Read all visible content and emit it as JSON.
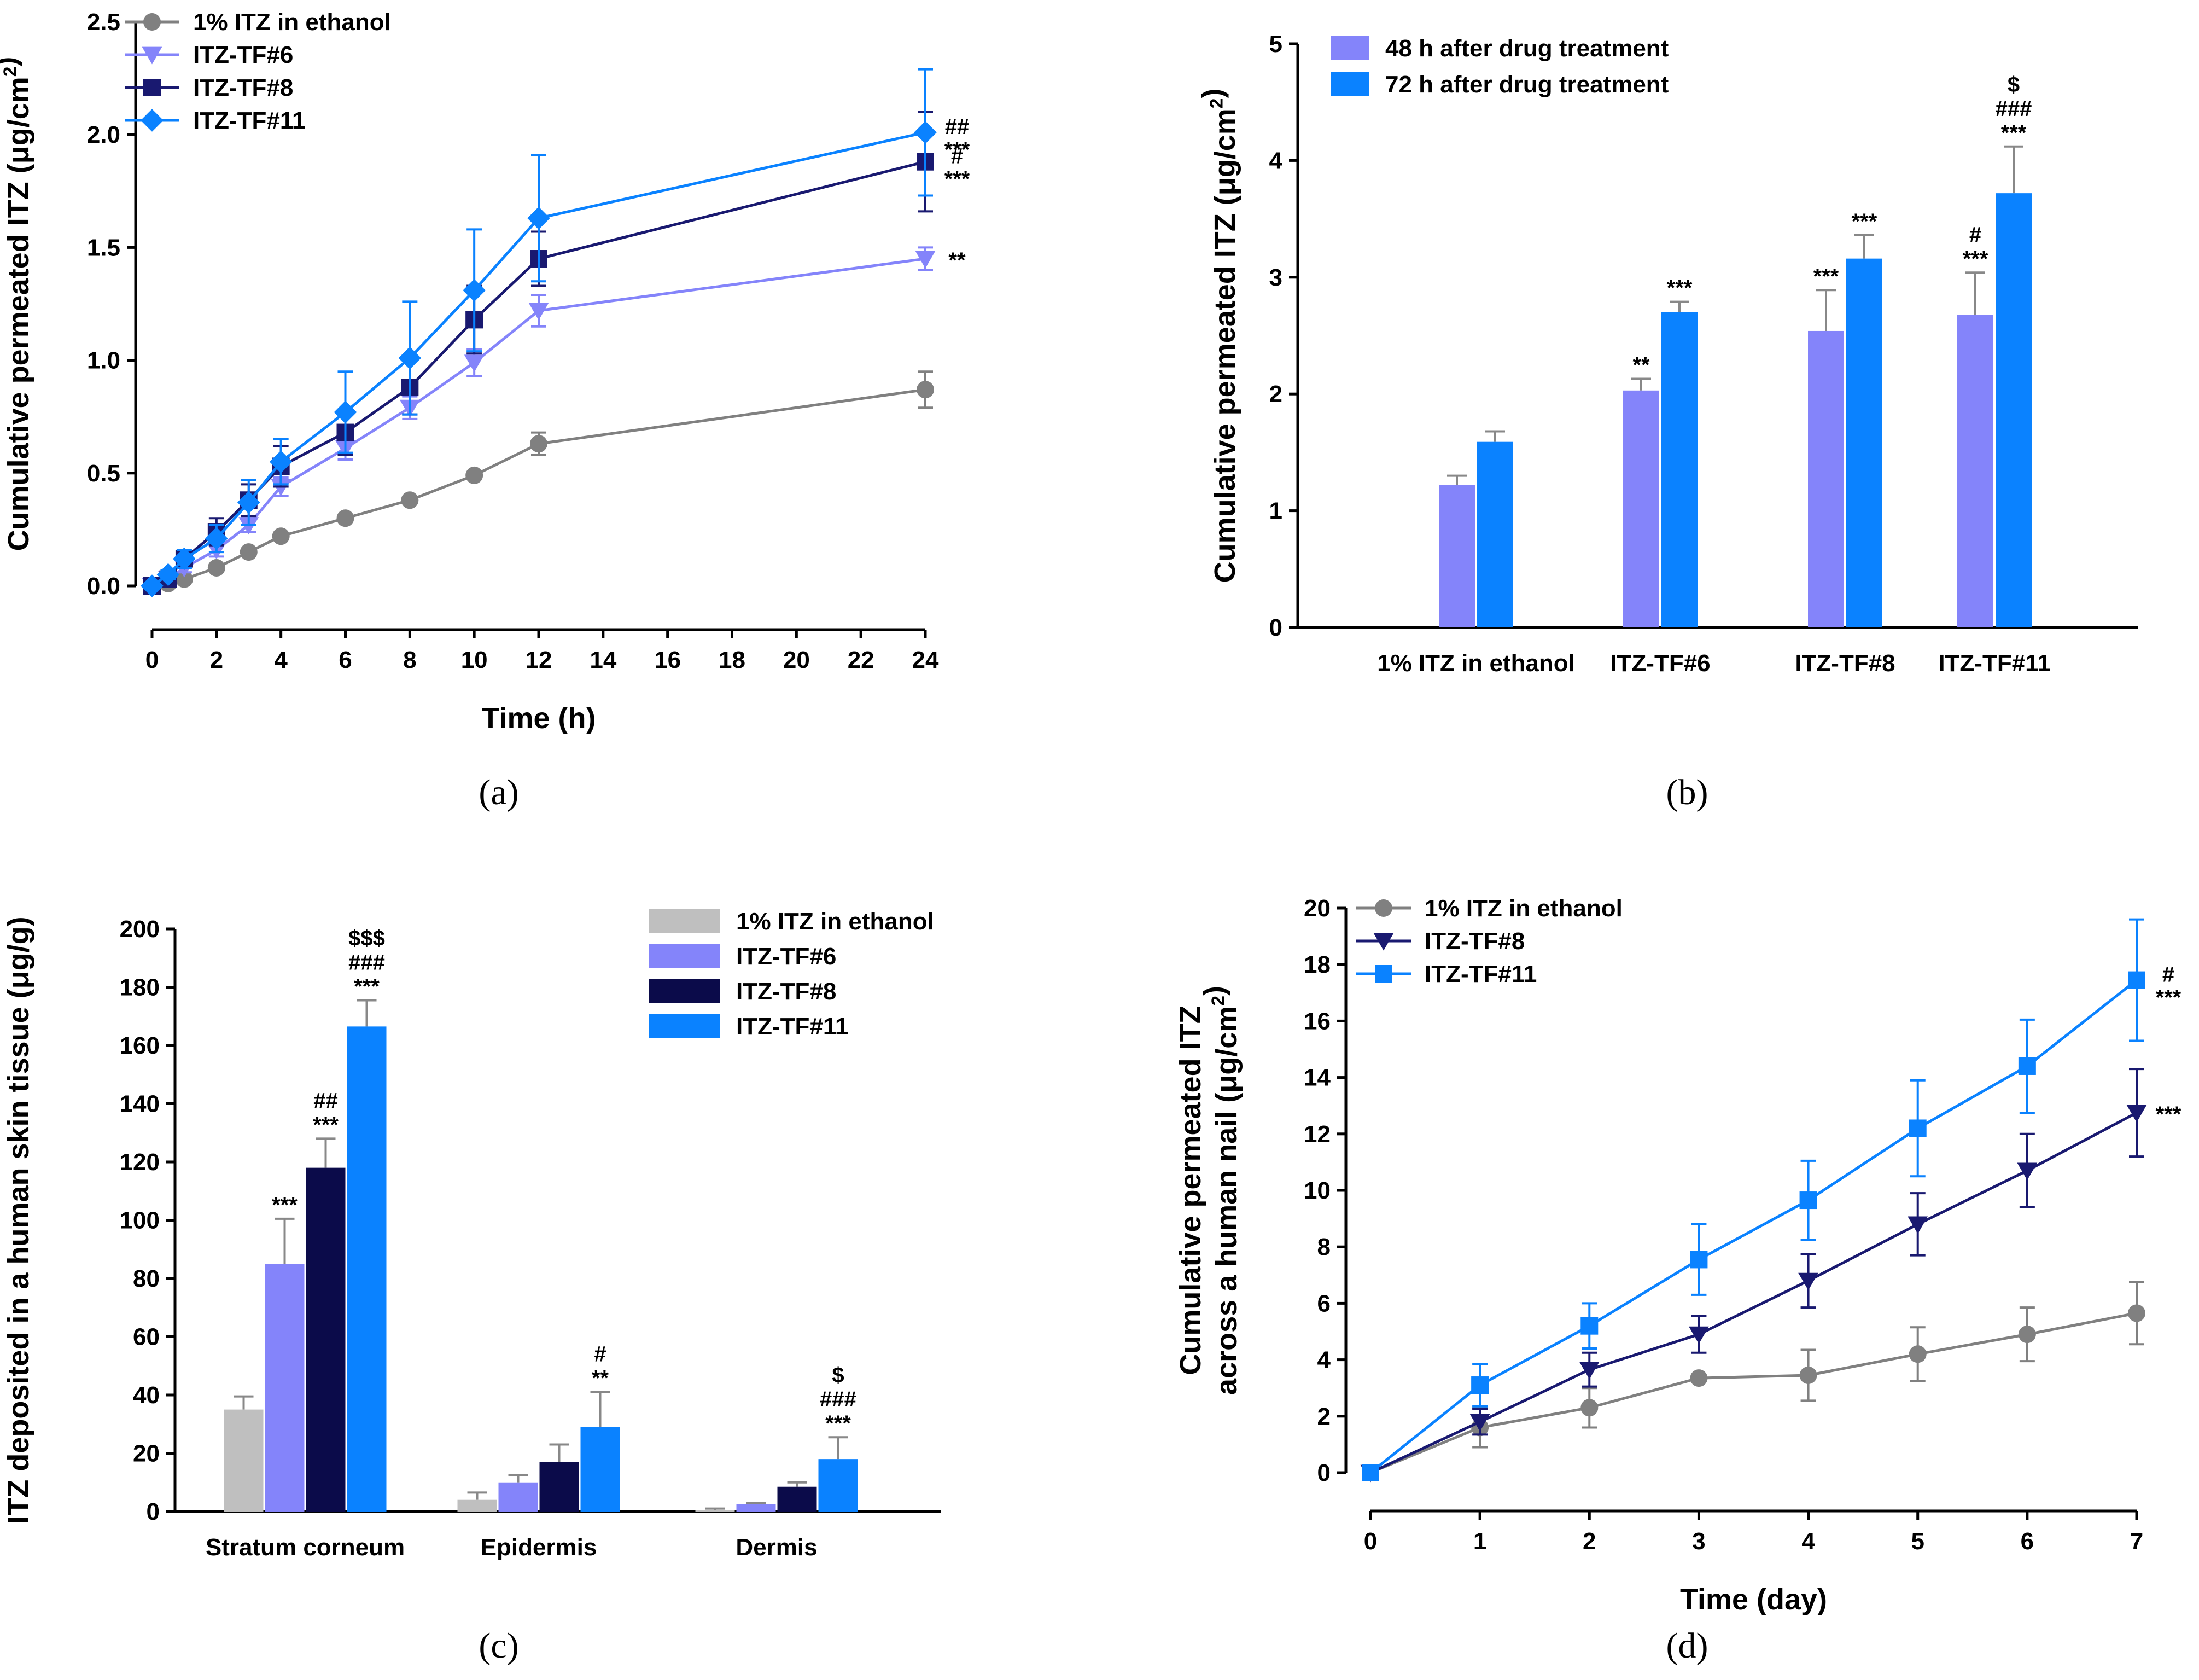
{
  "colors": {
    "ethanol_line": "#808080",
    "ethanol_bar": "#bfbfbf",
    "tf6": "#8484fa",
    "tf8_line": "#191970",
    "tf8_bar": "#0b0b4a",
    "tf11": "#0a82ff",
    "bar48": "#8484fa",
    "bar72": "#0a82ff",
    "axis": "#000000"
  },
  "chart_data": [
    {
      "id": "a",
      "panel_label": "(a)",
      "type": "line",
      "xlabel": "Time (h)",
      "ylabel": "Cumulative permeated ITZ (μg/cm²)",
      "xlim": [
        0,
        24
      ],
      "ylim": [
        0,
        2.5
      ],
      "xticks": [
        "0",
        "2",
        "4",
        "6",
        "8",
        "10",
        "12",
        "14",
        "16",
        "18",
        "20",
        "22",
        "24"
      ],
      "yticks": [
        "0.0",
        "0.5",
        "1.0",
        "1.5",
        "2.0",
        "2.5"
      ],
      "x": [
        0,
        0.5,
        1,
        2,
        3,
        4,
        6,
        8,
        10,
        12,
        24
      ],
      "legend": [
        "1% ITZ in ethanol",
        "ITZ-TF#6",
        "ITZ-TF#8",
        "ITZ-TF#11"
      ],
      "series": [
        {
          "name": "1% ITZ in ethanol",
          "marker": "circle",
          "color_key": "ethanol_line",
          "values": [
            0,
            0.01,
            0.03,
            0.08,
            0.15,
            0.22,
            0.3,
            0.38,
            0.49,
            0.63,
            0.87
          ],
          "errors": [
            0.01,
            0.01,
            0.01,
            0.01,
            0.01,
            0.01,
            0.01,
            0.01,
            0.01,
            0.05,
            0.08
          ]
        },
        {
          "name": "ITZ-TF#6",
          "marker": "triangle-down",
          "color_key": "tf6",
          "values": [
            0,
            0.03,
            0.08,
            0.16,
            0.27,
            0.44,
            0.61,
            0.79,
            0.99,
            1.22,
            1.45
          ],
          "errors": [
            0.01,
            0.01,
            0.02,
            0.03,
            0.03,
            0.04,
            0.05,
            0.05,
            0.06,
            0.07,
            0.05
          ]
        },
        {
          "name": "ITZ-TF#8",
          "marker": "square",
          "color_key": "tf8_line",
          "values": [
            0,
            0.03,
            0.12,
            0.24,
            0.38,
            0.53,
            0.68,
            0.88,
            1.18,
            1.45,
            1.88
          ],
          "errors": [
            0.01,
            0.02,
            0.03,
            0.06,
            0.07,
            0.09,
            0.1,
            0.12,
            0.15,
            0.12,
            0.22
          ]
        },
        {
          "name": "ITZ-TF#11",
          "marker": "diamond",
          "color_key": "tf11",
          "values": [
            0,
            0.05,
            0.12,
            0.21,
            0.37,
            0.55,
            0.77,
            1.01,
            1.31,
            1.63,
            2.01
          ],
          "errors": [
            0.01,
            0.02,
            0.04,
            0.06,
            0.1,
            0.1,
            0.18,
            0.25,
            0.27,
            0.28,
            0.28
          ]
        }
      ],
      "annotations": [
        {
          "series": 3,
          "lines": [
            "##",
            "***"
          ]
        },
        {
          "series": 2,
          "lines": [
            "#",
            "***"
          ]
        },
        {
          "series": 1,
          "lines": [
            "**"
          ]
        }
      ]
    },
    {
      "id": "b",
      "panel_label": "(b)",
      "type": "bar",
      "ylabel": "Cumulative permeated ITZ (μg/cm²)",
      "ylim": [
        0,
        5
      ],
      "yticks": [
        "0",
        "1",
        "2",
        "3",
        "4",
        "5"
      ],
      "categories": [
        "1% ITZ in ethanol",
        "ITZ-TF#6",
        "ITZ-TF#8",
        "ITZ-TF#11"
      ],
      "legend": [
        "48 h after drug treatment",
        "72 h after drug treatment"
      ],
      "series": [
        {
          "name": "48 h after drug treatment",
          "color_key": "bar48",
          "values": [
            1.22,
            2.03,
            2.54,
            2.68
          ],
          "errors": [
            0.08,
            0.1,
            0.35,
            0.36
          ]
        },
        {
          "name": "72 h after drug treatment",
          "color_key": "bar72",
          "values": [
            1.59,
            2.7,
            3.16,
            3.72
          ],
          "errors": [
            0.09,
            0.09,
            0.2,
            0.4
          ]
        }
      ],
      "annotations": [
        {
          "cat": 1,
          "series": 0,
          "lines": [
            "**"
          ]
        },
        {
          "cat": 1,
          "series": 1,
          "lines": [
            "***"
          ]
        },
        {
          "cat": 2,
          "series": 0,
          "lines": [
            "***"
          ]
        },
        {
          "cat": 2,
          "series": 1,
          "lines": [
            "***"
          ]
        },
        {
          "cat": 3,
          "series": 0,
          "lines": [
            "#",
            "***"
          ]
        },
        {
          "cat": 3,
          "series": 1,
          "lines": [
            "$",
            "###",
            "***"
          ]
        }
      ]
    },
    {
      "id": "c",
      "panel_label": "(c)",
      "type": "bar",
      "ylabel": "ITZ deposited in a human skin tissue (μg/g)",
      "ylim": [
        0,
        200
      ],
      "yticks": [
        "0",
        "20",
        "40",
        "60",
        "80",
        "100",
        "120",
        "140",
        "160",
        "180",
        "200"
      ],
      "categories": [
        "Stratum corneum",
        "Epidermis",
        "Dermis"
      ],
      "legend": [
        "1% ITZ in ethanol",
        "ITZ-TF#6",
        "ITZ-TF#8",
        "ITZ-TF#11"
      ],
      "series": [
        {
          "name": "1% ITZ in ethanol",
          "color_key": "ethanol_bar",
          "values": [
            35,
            4,
            0.5
          ],
          "errors": [
            4.5,
            2.5,
            0.5
          ]
        },
        {
          "name": "ITZ-TF#6",
          "color_key": "tf6",
          "values": [
            85,
            10,
            2.5
          ],
          "errors": [
            15.5,
            2.5,
            0.5
          ]
        },
        {
          "name": "ITZ-TF#8",
          "color_key": "tf8_bar",
          "values": [
            118,
            17,
            8.5
          ],
          "errors": [
            10,
            6,
            1.5
          ]
        },
        {
          "name": "ITZ-TF#11",
          "color_key": "tf11",
          "values": [
            166.5,
            29,
            18
          ],
          "errors": [
            9,
            12,
            7.5
          ]
        }
      ],
      "annotations": [
        {
          "cat": 0,
          "series": 1,
          "lines": [
            "***"
          ]
        },
        {
          "cat": 0,
          "series": 2,
          "lines": [
            "##",
            "***"
          ]
        },
        {
          "cat": 0,
          "series": 3,
          "lines": [
            "$$$",
            "###",
            "***"
          ]
        },
        {
          "cat": 1,
          "series": 3,
          "lines": [
            "#",
            "**"
          ]
        },
        {
          "cat": 2,
          "series": 3,
          "lines": [
            "$",
            "###",
            "***"
          ]
        }
      ]
    },
    {
      "id": "d",
      "panel_label": "(d)",
      "type": "line",
      "xlabel": "Time (day)",
      "ylabel_lines": [
        "Cumulative permeated ITZ",
        "across a human nail (μg/cm²)"
      ],
      "xlim": [
        0,
        7
      ],
      "ylim": [
        0,
        20
      ],
      "xticks": [
        "0",
        "1",
        "2",
        "3",
        "4",
        "5",
        "6",
        "7"
      ],
      "yticks": [
        "0",
        "2",
        "4",
        "6",
        "8",
        "10",
        "12",
        "14",
        "16",
        "18",
        "20"
      ],
      "x": [
        0,
        1,
        2,
        3,
        4,
        5,
        6,
        7
      ],
      "legend": [
        "1% ITZ in ethanol",
        "ITZ-TF#8",
        "ITZ-TF#11"
      ],
      "series": [
        {
          "name": "1% ITZ in ethanol",
          "marker": "circle",
          "color_key": "ethanol_line",
          "values": [
            0,
            1.6,
            2.3,
            3.35,
            3.45,
            4.2,
            4.9,
            5.65
          ],
          "errors": [
            0.05,
            0.7,
            0.7,
            0.1,
            0.9,
            0.95,
            0.95,
            1.1
          ]
        },
        {
          "name": "ITZ-TF#8",
          "marker": "triangle-down",
          "color_key": "tf8_line",
          "values": [
            0,
            1.8,
            3.65,
            4.9,
            6.8,
            8.8,
            10.7,
            12.75
          ],
          "errors": [
            0.05,
            0.45,
            0.6,
            0.65,
            0.95,
            1.1,
            1.3,
            1.55
          ]
        },
        {
          "name": "ITZ-TF#11",
          "marker": "square",
          "color_key": "tf11",
          "values": [
            0,
            3.1,
            5.2,
            7.55,
            9.65,
            12.2,
            14.4,
            17.45
          ],
          "errors": [
            0.05,
            0.75,
            0.8,
            1.25,
            1.4,
            1.7,
            1.65,
            2.15
          ]
        }
      ],
      "annotations": [
        {
          "series": 2,
          "lines": [
            "#",
            "***"
          ]
        },
        {
          "series": 1,
          "lines": [
            "***"
          ]
        }
      ]
    }
  ]
}
